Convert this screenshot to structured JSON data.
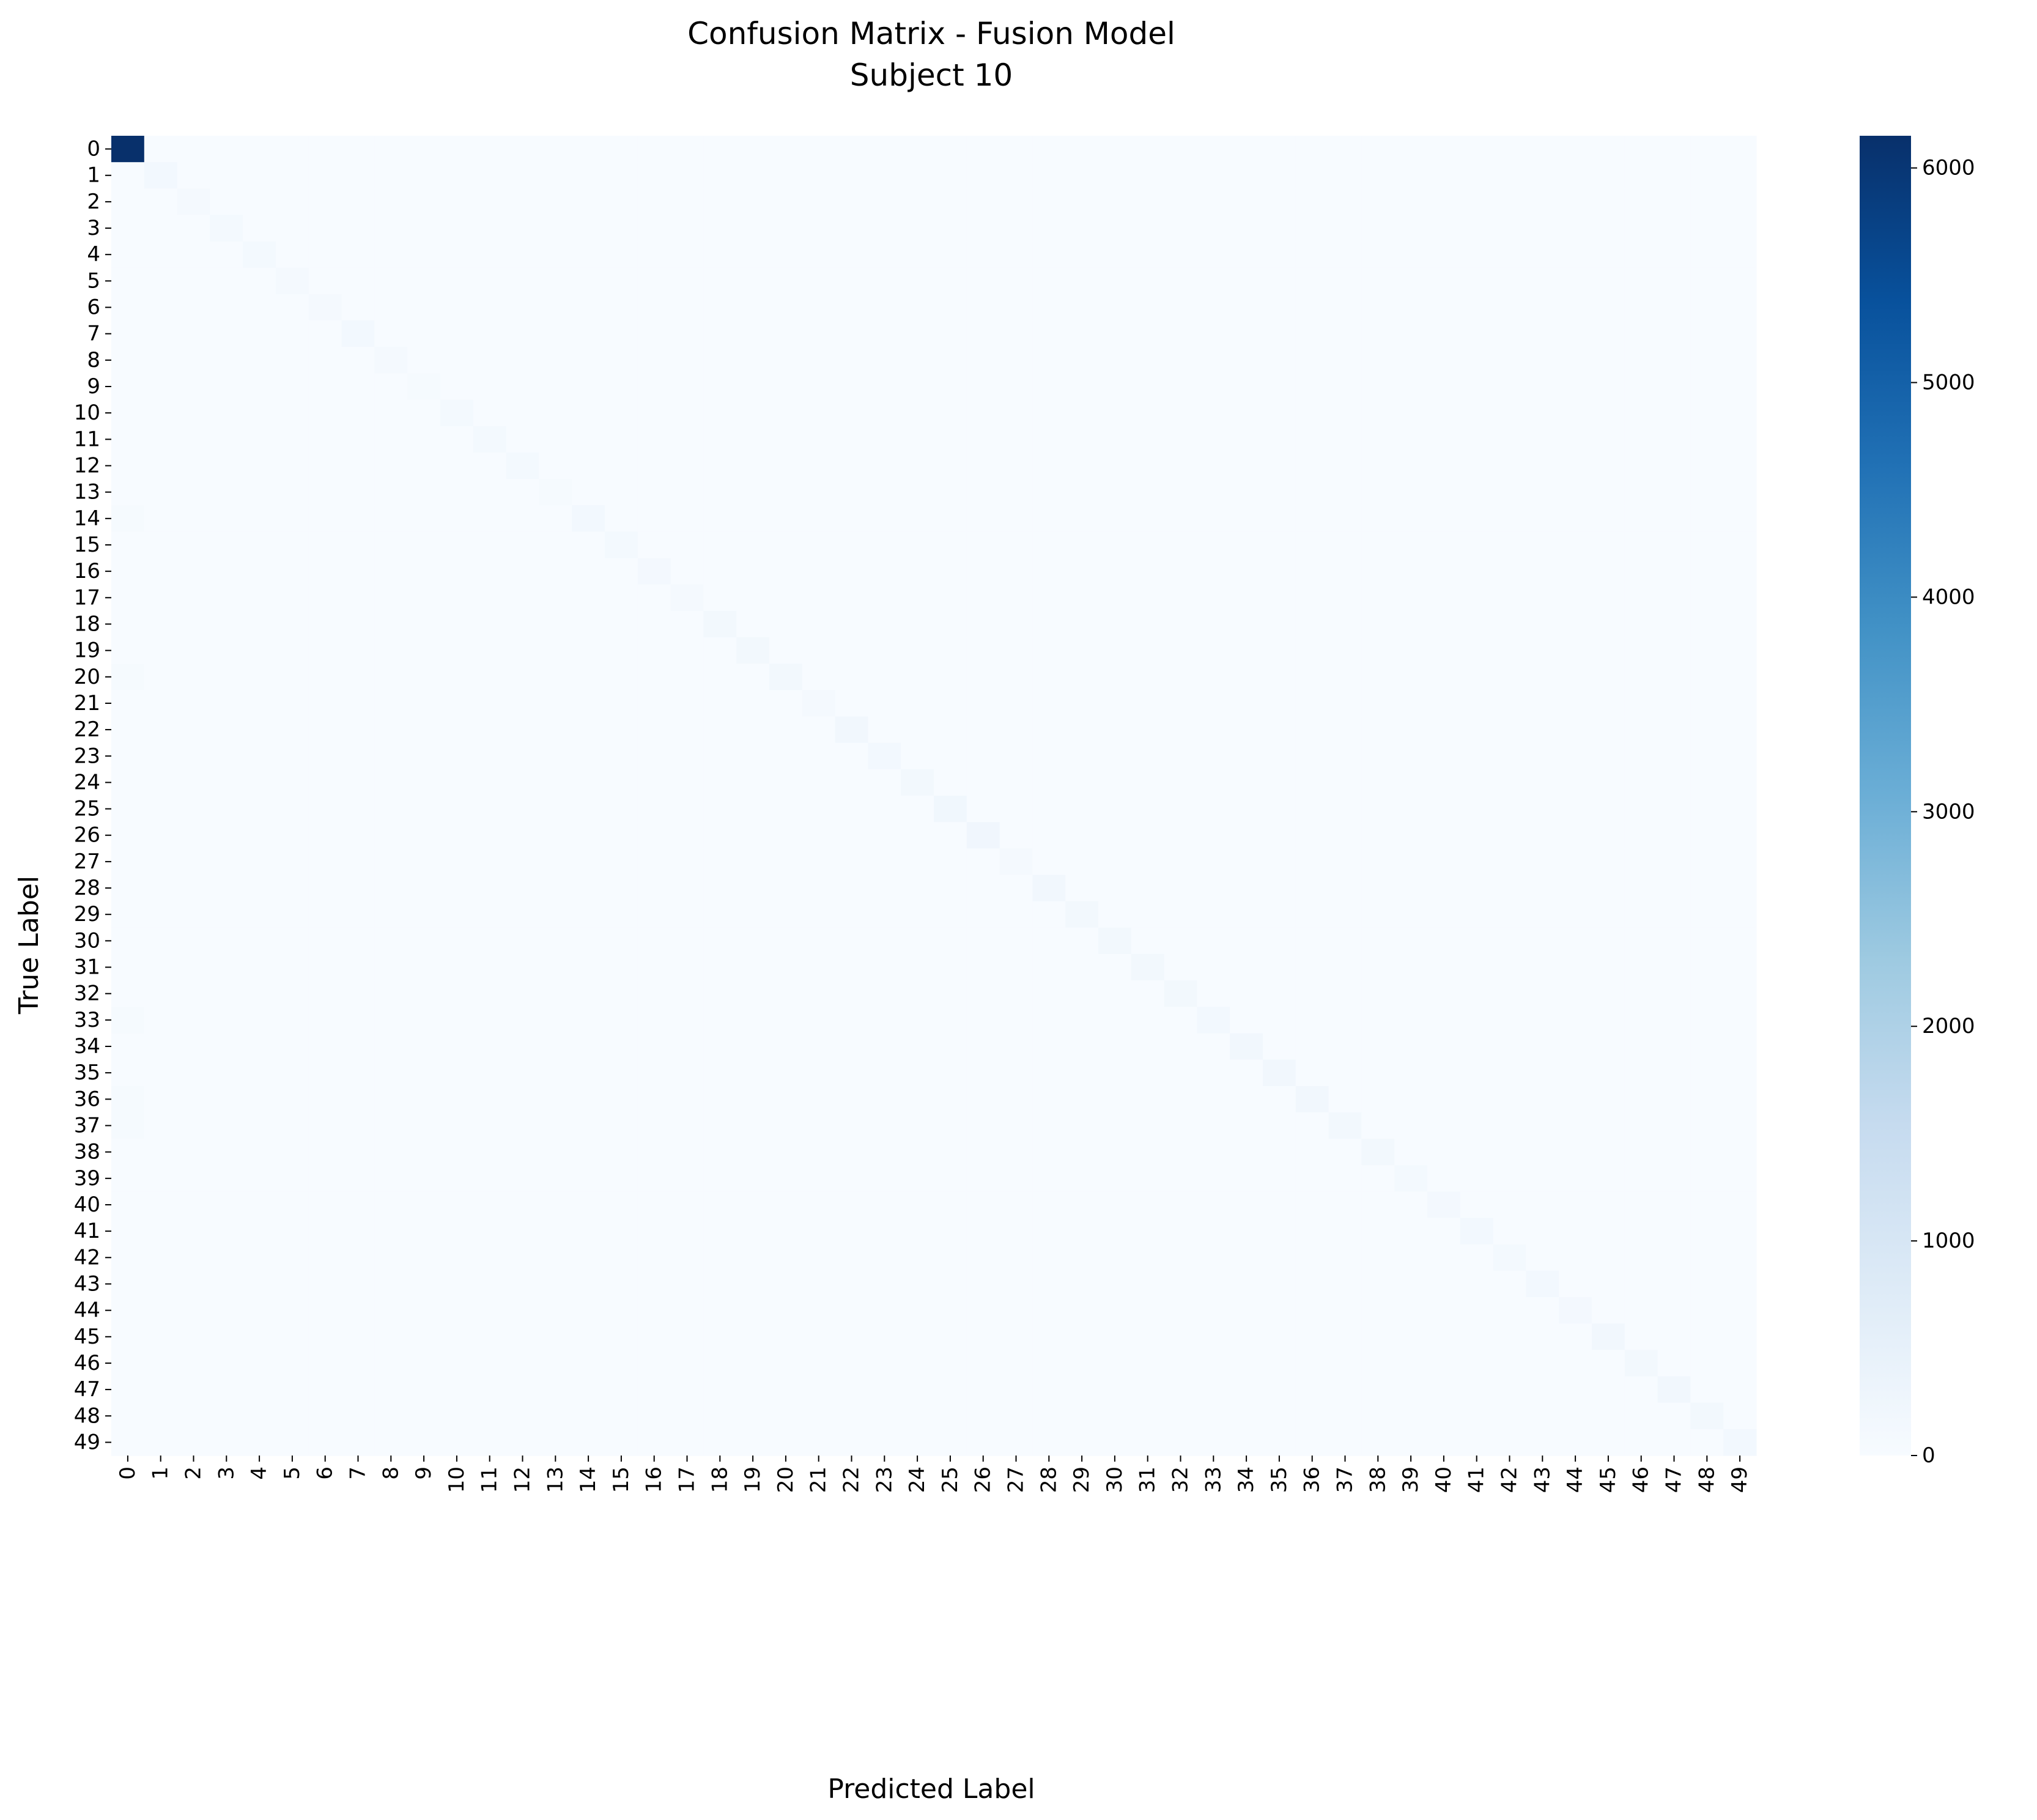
{
  "chart_data": {
    "type": "heatmap",
    "title": "Confusion Matrix - Fusion Model",
    "subtitle": "Subject 10",
    "xlabel": "Predicted Label",
    "ylabel": "True Label",
    "x_categories": [
      "0",
      "1",
      "2",
      "3",
      "4",
      "5",
      "6",
      "7",
      "8",
      "9",
      "10",
      "11",
      "12",
      "13",
      "14",
      "15",
      "16",
      "17",
      "18",
      "19",
      "20",
      "21",
      "22",
      "23",
      "24",
      "25",
      "26",
      "27",
      "28",
      "29",
      "30",
      "31",
      "32",
      "33",
      "34",
      "35",
      "36",
      "37",
      "38",
      "39",
      "40",
      "41",
      "42",
      "43",
      "44",
      "45",
      "46",
      "47",
      "48",
      "49"
    ],
    "y_categories": [
      "0",
      "1",
      "2",
      "3",
      "4",
      "5",
      "6",
      "7",
      "8",
      "9",
      "10",
      "11",
      "12",
      "13",
      "14",
      "15",
      "16",
      "17",
      "18",
      "19",
      "20",
      "21",
      "22",
      "23",
      "24",
      "25",
      "26",
      "27",
      "28",
      "29",
      "30",
      "31",
      "32",
      "33",
      "34",
      "35",
      "36",
      "37",
      "38",
      "39",
      "40",
      "41",
      "42",
      "43",
      "44",
      "45",
      "46",
      "47",
      "48",
      "49"
    ],
    "colormap": "Blues",
    "colorbar": {
      "min": 0,
      "max": 6150,
      "ticks": [
        0,
        1000,
        2000,
        3000,
        4000,
        5000,
        6000
      ]
    },
    "diagonal": [
      6150,
      140,
      100,
      120,
      110,
      100,
      90,
      140,
      80,
      70,
      120,
      110,
      120,
      60,
      140,
      110,
      130,
      90,
      150,
      160,
      150,
      100,
      180,
      140,
      150,
      200,
      220,
      80,
      190,
      160,
      150,
      150,
      160,
      140,
      190,
      170,
      170,
      150,
      160,
      120,
      130,
      140,
      120,
      140,
      130,
      170,
      150,
      170,
      160,
      140
    ],
    "off_diagonal_cells": [
      {
        "row": 14,
        "col": 0,
        "value": 60
      },
      {
        "row": 20,
        "col": 0,
        "value": 50
      },
      {
        "row": 33,
        "col": 0,
        "value": 60
      },
      {
        "row": 36,
        "col": 0,
        "value": 50
      },
      {
        "row": 37,
        "col": 0,
        "value": 50
      }
    ],
    "default_off_diagonal": 0
  }
}
